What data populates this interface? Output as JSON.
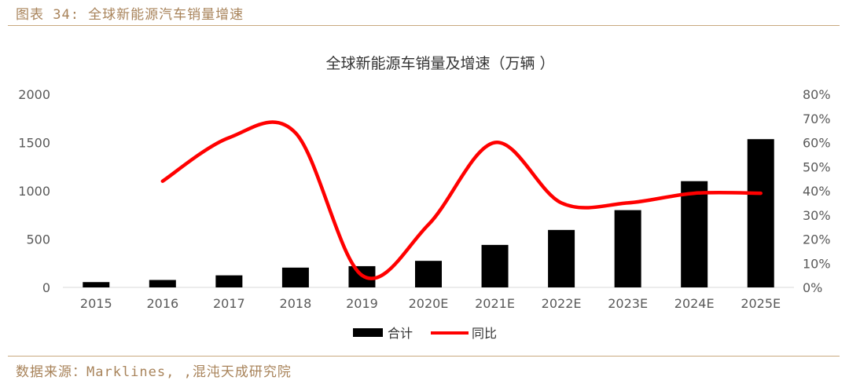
{
  "figure": {
    "header": "图表 34: 全球新能源汽车销量增速",
    "source": "数据来源：Marklines, ,混沌天成研究院"
  },
  "colors": {
    "header_text": "#a8835a",
    "rule": "#c9a97f",
    "bar": "#000000",
    "line": "#ff0000",
    "axis_text": "#595959"
  },
  "chart_data": {
    "type": "bar",
    "title": "全球新能源车销量及增速（万辆 ）",
    "categories": [
      "2015",
      "2016",
      "2017",
      "2018",
      "2019",
      "2020E",
      "2021E",
      "2022E",
      "2023E",
      "2024E",
      "2025E"
    ],
    "series": [
      {
        "name": "合计",
        "type": "bar",
        "axis": "left",
        "values": [
          55,
          77,
          125,
          205,
          220,
          275,
          440,
          595,
          800,
          1100,
          1535
        ]
      },
      {
        "name": "同比",
        "type": "line",
        "axis": "right",
        "values": [
          null,
          0.44,
          0.62,
          0.64,
          0.05,
          0.26,
          0.6,
          0.35,
          0.35,
          0.39,
          0.39
        ]
      }
    ],
    "y_left": {
      "range": [
        0,
        2000
      ],
      "ticks": [
        0,
        500,
        1000,
        1500,
        2000
      ],
      "tick_labels": [
        "0",
        "500",
        "1000",
        "1500",
        "2000"
      ]
    },
    "y_right": {
      "range": [
        0,
        0.8
      ],
      "ticks": [
        0,
        0.1,
        0.2,
        0.3,
        0.4,
        0.5,
        0.6,
        0.7,
        0.8
      ],
      "tick_labels": [
        "0%",
        "10%",
        "20%",
        "30%",
        "40%",
        "50%",
        "60%",
        "70%",
        "80%"
      ]
    },
    "grid": false,
    "legend_position": "bottom"
  }
}
